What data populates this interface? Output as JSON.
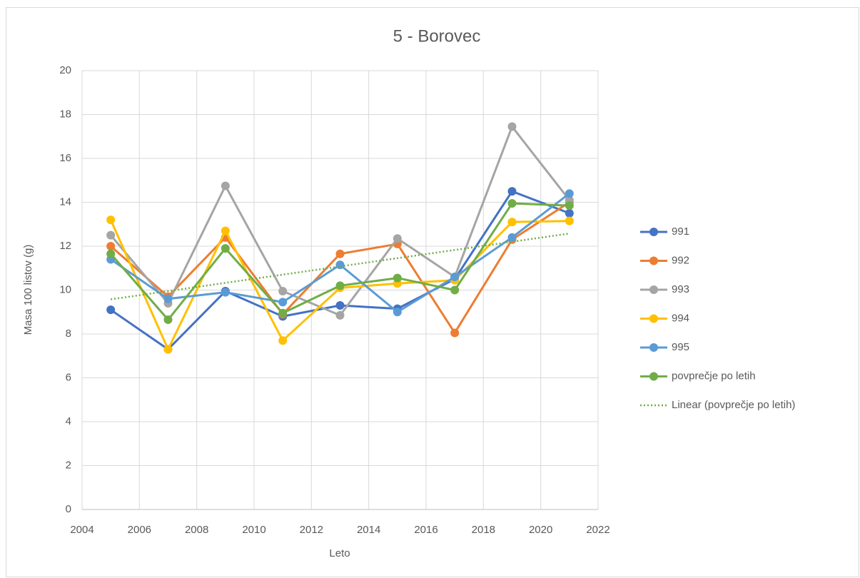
{
  "chart_data": {
    "type": "line",
    "title": "5 - Borovec",
    "xlabel": "Leto",
    "ylabel": "Masa 100 listov (g)",
    "x": [
      2005,
      2007,
      2009,
      2011,
      2013,
      2015,
      2017,
      2019,
      2021
    ],
    "series": [
      {
        "name": "991",
        "color": "#4472c4",
        "values": [
          9.1,
          7.3,
          9.95,
          8.8,
          9.3,
          9.15,
          10.5,
          14.5,
          13.5
        ]
      },
      {
        "name": "992",
        "color": "#ed7d31",
        "values": [
          12.0,
          9.7,
          12.4,
          8.9,
          11.65,
          12.1,
          8.05,
          12.3,
          14.0
        ]
      },
      {
        "name": "993",
        "color": "#a5a5a5",
        "values": [
          12.5,
          9.4,
          14.75,
          9.95,
          8.85,
          12.35,
          10.6,
          17.45,
          14.1
        ]
      },
      {
        "name": "994",
        "color": "#ffc000",
        "values": [
          13.2,
          7.3,
          12.7,
          7.7,
          10.1,
          10.3,
          10.45,
          13.1,
          13.15
        ]
      },
      {
        "name": "995",
        "color": "#5b9bd5",
        "values": [
          11.4,
          9.6,
          9.9,
          9.45,
          11.15,
          9.0,
          10.6,
          12.4,
          14.4
        ]
      },
      {
        "name": "povprečje po letih",
        "color": "#70ad47",
        "values": [
          11.65,
          8.65,
          11.9,
          8.95,
          10.2,
          10.55,
          10.0,
          13.95,
          13.85
        ]
      }
    ],
    "trendline": {
      "name": "Linear (povprečje po letih)",
      "color": "#70ad47",
      "style": "dotted"
    },
    "xlim": [
      2004,
      2022
    ],
    "xticks": [
      2004,
      2006,
      2008,
      2010,
      2012,
      2014,
      2016,
      2018,
      2020,
      2022
    ],
    "ylim": [
      0,
      20
    ],
    "yticks": [
      0,
      2,
      4,
      6,
      8,
      10,
      12,
      14,
      16,
      18,
      20
    ],
    "grid": true,
    "legend": "right"
  }
}
